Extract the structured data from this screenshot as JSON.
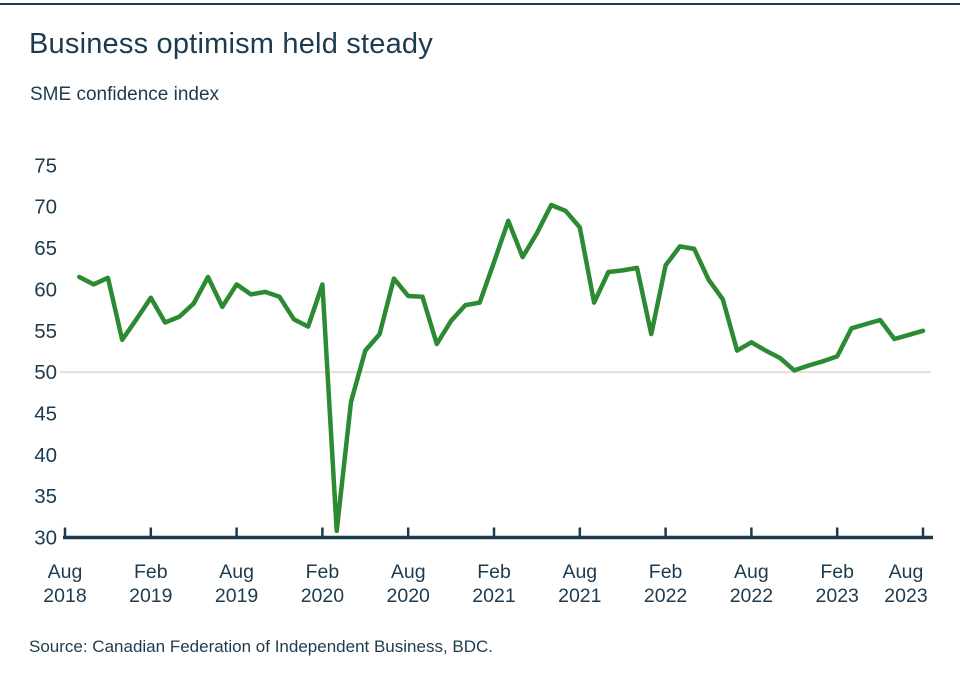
{
  "page": {
    "title": "Business optimism held steady",
    "subtitle": "SME confidence index",
    "source": "Source: Canadian Federation of Independent Business, BDC."
  },
  "colors": {
    "line_green": "#2c8a32",
    "text_navy": "#1d3b4f",
    "axis_navy": "#1d3b4f",
    "gridline_beige": "#eadbd3"
  },
  "chart_data": {
    "type": "line",
    "title": "Business optimism held steady",
    "subtitle": "SME confidence index",
    "series_name": "SME confidence index",
    "x_interval": "monthly",
    "x": [
      "Sep 2018",
      "Oct 2018",
      "Nov 2018",
      "Dec 2018",
      "Jan 2019",
      "Feb 2019",
      "Mar 2019",
      "Apr 2019",
      "May 2019",
      "Jun 2019",
      "Jul 2019",
      "Aug 2019",
      "Sep 2019",
      "Oct 2019",
      "Nov 2019",
      "Dec 2019",
      "Jan 2020",
      "Feb 2020",
      "Mar 2020",
      "Apr 2020",
      "May 2020",
      "Jun 2020",
      "Jul 2020",
      "Aug 2020",
      "Sep 2020",
      "Oct 2020",
      "Nov 2020",
      "Dec 2020",
      "Jan 2021",
      "Feb 2021",
      "Mar 2021",
      "Apr 2021",
      "May 2021",
      "Jun 2021",
      "Jul 2021",
      "Aug 2021",
      "Sep 2021",
      "Oct 2021",
      "Nov 2021",
      "Dec 2021",
      "Jan 2022",
      "Feb 2022",
      "Mar 2022",
      "Apr 2022",
      "May 2022",
      "Jun 2022",
      "Jul 2022",
      "Aug 2022",
      "Sep 2022",
      "Oct 2022",
      "Nov 2022",
      "Dec 2022",
      "Jan 2023",
      "Feb 2023",
      "Mar 2023",
      "Apr 2023",
      "May 2023",
      "Jun 2023",
      "Jul 2023",
      "Aug 2023"
    ],
    "values": [
      61.5,
      60.6,
      61.4,
      53.9,
      56.4,
      59.0,
      56.0,
      56.7,
      58.3,
      61.5,
      57.9,
      60.6,
      59.4,
      59.7,
      59.1,
      56.4,
      55.5,
      60.6,
      30.8,
      46.4,
      52.6,
      54.6,
      61.3,
      59.2,
      59.1,
      53.4,
      56.2,
      58.1,
      58.4,
      63.3,
      68.3,
      63.9,
      66.8,
      70.2,
      69.5,
      67.5,
      58.4,
      62.1,
      62.3,
      62.6,
      54.6,
      62.9,
      65.2,
      64.9,
      61.2,
      58.8,
      52.6,
      53.6,
      52.6,
      51.7,
      50.2,
      50.8,
      51.3,
      51.9,
      55.3,
      55.8,
      56.3,
      54.0,
      54.5,
      55.0
    ],
    "x_tick_labels": [
      [
        "Aug",
        "2018"
      ],
      [
        "Feb",
        "2019"
      ],
      [
        "Aug",
        "2019"
      ],
      [
        "Feb",
        "2020"
      ],
      [
        "Aug",
        "2020"
      ],
      [
        "Feb",
        "2021"
      ],
      [
        "Aug",
        "2021"
      ],
      [
        "Feb",
        "2022"
      ],
      [
        "Aug",
        "2022"
      ],
      [
        "Feb",
        "2023"
      ],
      [
        "Aug",
        "2023"
      ]
    ],
    "y_ticks": [
      30,
      35,
      40,
      45,
      50,
      55,
      60,
      65,
      70,
      75
    ],
    "ylim": [
      30,
      75
    ],
    "gridline_at": 50,
    "grid": "single horizontal gridline at 50 only",
    "legend": "none",
    "xlabel": "",
    "ylabel": ""
  }
}
